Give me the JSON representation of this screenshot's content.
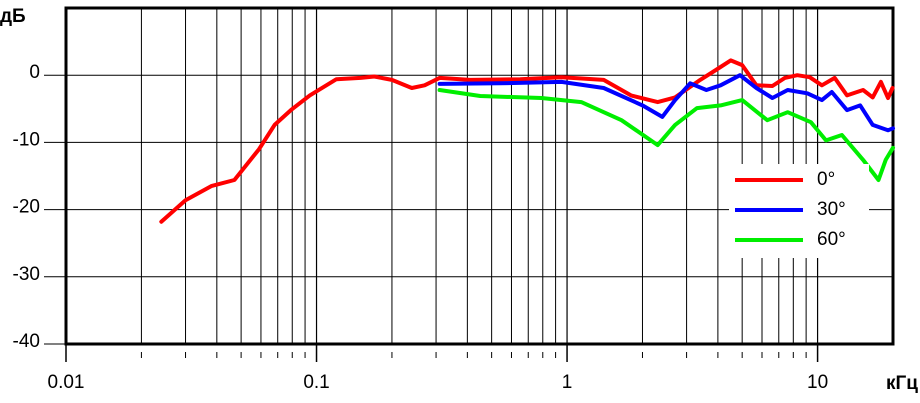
{
  "chart_data": {
    "type": "line",
    "x_label": "кГц",
    "y_label": "дБ",
    "xscale": "log",
    "grid": true,
    "legend": "lower right",
    "xlim": [
      0.01,
      20
    ],
    "ylim": [
      -40,
      10
    ],
    "xticks": [
      0.01,
      0.1,
      1,
      10
    ],
    "xminorticks": [
      0.02,
      0.03,
      0.04,
      0.05,
      0.06,
      0.07,
      0.08,
      0.09,
      0.2,
      0.3,
      0.4,
      0.5,
      0.6,
      0.7,
      0.8,
      0.9,
      2,
      3,
      4,
      5,
      6,
      7,
      8,
      9
    ],
    "yticks": [
      -40,
      -30,
      -20,
      -10,
      0
    ],
    "series": [
      {
        "name": "0°",
        "color": "#ff0000",
        "x": [
          0.024,
          0.03,
          0.038,
          0.047,
          0.059,
          0.068,
          0.079,
          0.094,
          0.12,
          0.15,
          0.17,
          0.2,
          0.24,
          0.27,
          0.31,
          0.41,
          0.65,
          0.95,
          1.4,
          1.8,
          2.3,
          2.7,
          3.4,
          3.9,
          4.5,
          5,
          5.7,
          6.6,
          7.4,
          8.3,
          9.3,
          10.4,
          11.7,
          13.1,
          15.2,
          16.6,
          17.9,
          19.1,
          19.9
        ],
        "values": [
          -21.8,
          -18.6,
          -16.5,
          -15.6,
          -11,
          -7.4,
          -5.2,
          -3,
          -0.6,
          -0.4,
          -0.2,
          -0.7,
          -1.9,
          -1.5,
          -0.4,
          -0.7,
          -0.6,
          -0.3,
          -0.7,
          -3,
          -4,
          -3.3,
          -0.7,
          0.7,
          2.2,
          1.5,
          -1.5,
          -1.6,
          -0.4,
          0,
          -0.3,
          -1.5,
          -0.4,
          -3,
          -2.2,
          -3.3,
          -1,
          -3.4,
          -1.9
        ]
      },
      {
        "name": "30°",
        "color": "#0000ff",
        "x": [
          0.31,
          0.54,
          0.95,
          1.4,
          2,
          2.4,
          2.7,
          3.1,
          3.6,
          4.1,
          4.9,
          5.7,
          6.6,
          7.6,
          9.1,
          10.4,
          11.4,
          13.1,
          14.8,
          16.6,
          19.1,
          20
        ],
        "values": [
          -1.3,
          -1.2,
          -1,
          -1.9,
          -4.5,
          -6.2,
          -3.7,
          -1.2,
          -2.2,
          -1.5,
          0,
          -1.9,
          -3.4,
          -2.2,
          -2.7,
          -3.7,
          -2.5,
          -5.2,
          -4.5,
          -7.4,
          -8.2,
          -7.9
        ]
      },
      {
        "name": "60°",
        "color": "#00ee00",
        "x": [
          0.31,
          0.45,
          0.79,
          1.14,
          1.65,
          2.3,
          2.7,
          3.3,
          4.1,
          5,
          6.3,
          7.6,
          9.4,
          10.8,
          12.5,
          15.2,
          17.5,
          18.7,
          20
        ],
        "values": [
          -2.2,
          -3.1,
          -3.4,
          -4,
          -6.7,
          -10.4,
          -7.4,
          -4.9,
          -4.5,
          -3.7,
          -6.7,
          -5.5,
          -7,
          -9.7,
          -8.9,
          -12.6,
          -15.6,
          -12.6,
          -10.8
        ]
      }
    ]
  }
}
